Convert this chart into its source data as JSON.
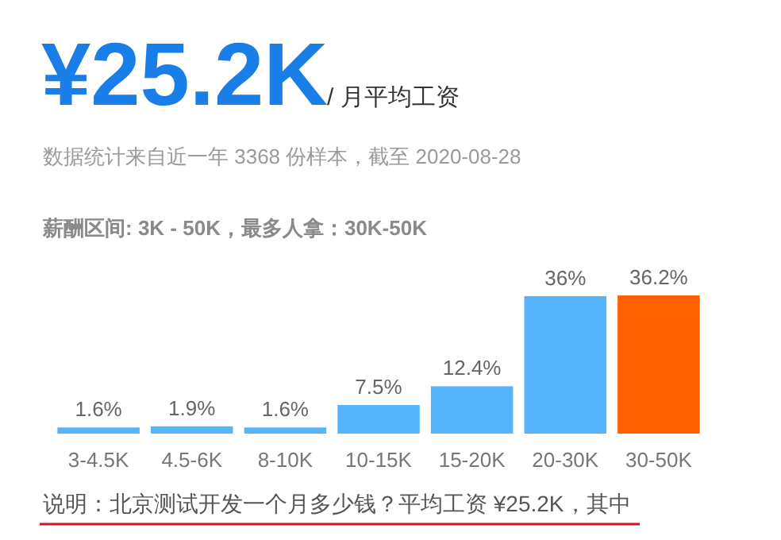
{
  "chart_data": {
    "type": "bar",
    "title": "¥25.2K",
    "subtitle": "/ 月平均工资",
    "annotations": [
      "数据统计来自近一年 3368 份样本，截至 2020-08-28",
      "薪酬区间: 3K - 50K，最多人拿：30K-50K",
      "说明：北京测试开发一个月多少钱？平均工资 ¥25.2K，其中"
    ],
    "categories": [
      "3-4.5K",
      "4.5-6K",
      "8-10K",
      "10-15K",
      "15-20K",
      "20-30K",
      "30-50K"
    ],
    "values": [
      1.6,
      1.9,
      1.6,
      7.5,
      12.4,
      36,
      36.2
    ],
    "colors": [
      "#56b4fc",
      "#56b4fc",
      "#56b4fc",
      "#56b4fc",
      "#56b4fc",
      "#56b4fc",
      "#ff6000"
    ],
    "value_labels": [
      "1.6%",
      "1.9%",
      "1.6%",
      "7.5%",
      "12.4%",
      "36%",
      "36.2%"
    ]
  }
}
